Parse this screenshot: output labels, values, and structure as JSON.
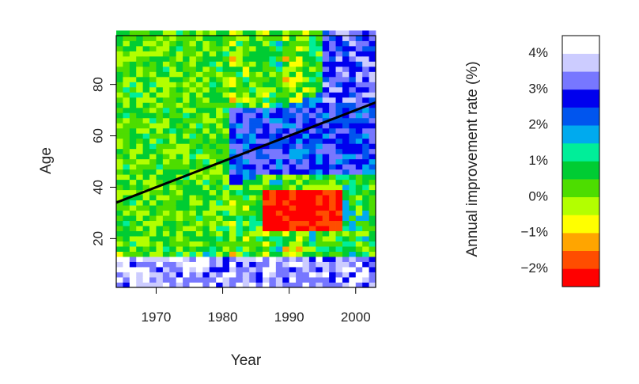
{
  "chart_data": {
    "type": "heatmap",
    "title": "",
    "xlabel": "Year",
    "ylabel": "Age",
    "xlim": [
      1964,
      2003
    ],
    "ylim": [
      1,
      99
    ],
    "x_ticks": [
      1970,
      1980,
      1990,
      2000
    ],
    "y_ticks": [
      20,
      40,
      60,
      80
    ],
    "x_tick_labels": [
      "1970",
      "1980",
      "1990",
      "2000"
    ],
    "y_tick_labels": [
      "20",
      "40",
      "60",
      "80"
    ],
    "cell_years": {
      "start": 1964,
      "end": 2002,
      "step": 1
    },
    "cell_ages": {
      "start": 1,
      "end": 99,
      "step": 2
    },
    "cohort_line": {
      "points": [
        [
          1964,
          34
        ],
        [
          2003,
          73
        ]
      ],
      "color": "#000000"
    },
    "value_description": "Annual improvement rate (%) per year-age cell; approximate regional reading of the heatmap",
    "regions": [
      {
        "name": "young-ages-high-improvement",
        "years": [
          1964,
          2003
        ],
        "ages": [
          1,
          12
        ],
        "value": 3.7
      },
      {
        "name": "older-cohort-band",
        "years": [
          1980,
          2003
        ],
        "ages": [
          45,
          70
        ],
        "value": 2.6
      },
      {
        "name": "young-adult-worsening",
        "years": [
          1986,
          1997
        ],
        "ages": [
          22,
          38
        ],
        "value": -2.3
      },
      {
        "name": "elderly-recent",
        "years": [
          1995,
          2003
        ],
        "ages": [
          70,
          99
        ],
        "value": 3.0
      },
      {
        "name": "early-period-background",
        "years": [
          1964,
          1980
        ],
        "ages": [
          15,
          99
        ],
        "value": 0.3
      }
    ],
    "colorbar": {
      "title": "Annual improvement rate (%)",
      "tick_labels": [
        "4%",
        "3%",
        "2%",
        "1%",
        "0%",
        "−1%",
        "−2%"
      ],
      "tick_values": [
        4,
        3,
        2,
        1,
        0,
        -1,
        -2
      ],
      "range": [
        -2.5,
        4.5
      ],
      "bins": [
        {
          "from": -2.5,
          "to": -2.0,
          "color": "#ff0000"
        },
        {
          "from": -2.0,
          "to": -1.5,
          "color": "#ff4d00"
        },
        {
          "from": -1.5,
          "to": -1.0,
          "color": "#ffa500"
        },
        {
          "from": -1.0,
          "to": -0.5,
          "color": "#ffff00"
        },
        {
          "from": -0.5,
          "to": 0.0,
          "color": "#b3ff00"
        },
        {
          "from": 0.0,
          "to": 0.5,
          "color": "#4ddd00"
        },
        {
          "from": 0.5,
          "to": 1.0,
          "color": "#00cc33"
        },
        {
          "from": 1.0,
          "to": 1.5,
          "color": "#00ee99"
        },
        {
          "from": 1.5,
          "to": 2.0,
          "color": "#00aaee"
        },
        {
          "from": 2.0,
          "to": 2.5,
          "color": "#0055ee"
        },
        {
          "from": 2.5,
          "to": 3.0,
          "color": "#0000ee"
        },
        {
          "from": 3.0,
          "to": 3.5,
          "color": "#7777ff"
        },
        {
          "from": 3.5,
          "to": 4.0,
          "color": "#ccccff"
        },
        {
          "from": 4.0,
          "to": 4.5,
          "color": "#ffffff"
        }
      ]
    }
  }
}
